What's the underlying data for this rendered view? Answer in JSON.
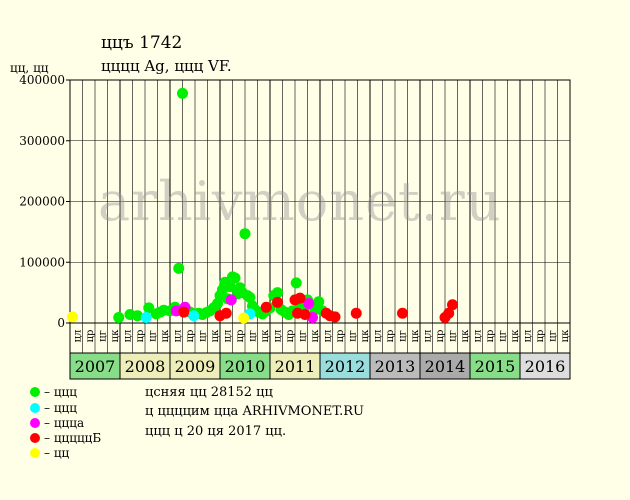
{
  "header": {
    "title": "ццъ 1742",
    "subtitle": "цццц Ag, ццц VF.",
    "y_unit": "цц, цц"
  },
  "watermark": "arhivmonet.ru",
  "colors": {
    "background": "#ffffe8",
    "plot_bg": "#ffffe8",
    "green": "#00ee00",
    "cyan": "#00ffff",
    "magenta": "#ff00ff",
    "red": "#ff0000",
    "yellow": "#ffff00"
  },
  "legend": [
    {
      "label": "– ццц",
      "color": "#00ee00"
    },
    {
      "label": "– ццц",
      "color": "#00ffff"
    },
    {
      "label": "– ццца",
      "color": "#ff00ff"
    },
    {
      "label": "– цццццБ",
      "color": "#ff0000"
    },
    {
      "label": "– цц",
      "color": "#ffff00"
    }
  ],
  "info": {
    "line1": "цcняя цц 28152 цц",
    "line2": "ц ццццим цца ARHIVMONET.RU",
    "line3": "ццц ц 20 ця 2017 цц."
  },
  "chart_data": {
    "type": "scatter",
    "ylim": [
      0,
      400000
    ],
    "yticks": [
      0,
      100000,
      200000,
      300000,
      400000
    ],
    "ytick_labels": [
      "0",
      "100000",
      "200000",
      "300000",
      "400000"
    ],
    "grid": true,
    "years": [
      {
        "label": "2007",
        "color": "#88dd88"
      },
      {
        "label": "2008",
        "color": "#eeeebb"
      },
      {
        "label": "2009",
        "color": "#eeeebb"
      },
      {
        "label": "2010",
        "color": "#88dd88"
      },
      {
        "label": "2011",
        "color": "#eeeebb"
      },
      {
        "label": "2012",
        "color": "#99dddd"
      },
      {
        "label": "2013",
        "color": "#bbbbbb"
      },
      {
        "label": "2014",
        "color": "#aaaaaa"
      },
      {
        "label": "2015",
        "color": "#88dd88"
      },
      {
        "label": "2016",
        "color": "#dddddd"
      }
    ],
    "quarter_labels": [
      "цл",
      "цр",
      "цг",
      "цк"
    ],
    "series": [
      {
        "color": "#00ee00",
        "points": [
          [
            1.95,
            9000
          ],
          [
            2.4,
            14000
          ],
          [
            2.7,
            12000
          ],
          [
            3.15,
            25000
          ],
          [
            3.45,
            15000
          ],
          [
            3.6,
            18000
          ],
          [
            3.75,
            21000
          ],
          [
            4.0,
            20000
          ],
          [
            4.2,
            26000
          ],
          [
            4.35,
            90000
          ],
          [
            4.5,
            378000
          ],
          [
            4.65,
            22000
          ],
          [
            4.8,
            18000
          ],
          [
            5.0,
            15000
          ],
          [
            5.15,
            16000
          ],
          [
            5.3,
            14000
          ],
          [
            5.45,
            17000
          ],
          [
            5.6,
            20000
          ],
          [
            5.75,
            25000
          ],
          [
            5.9,
            32000
          ],
          [
            6.0,
            45000
          ],
          [
            6.1,
            55000
          ],
          [
            6.2,
            67000
          ],
          [
            6.3,
            40000
          ],
          [
            6.4,
            60000
          ],
          [
            6.5,
            76000
          ],
          [
            6.6,
            74000
          ],
          [
            6.7,
            48000
          ],
          [
            6.8,
            58000
          ],
          [
            6.9,
            50000
          ],
          [
            7.0,
            147000
          ],
          [
            7.1,
            45000
          ],
          [
            7.2,
            42000
          ],
          [
            7.3,
            28000
          ],
          [
            7.4,
            22000
          ],
          [
            7.55,
            18000
          ],
          [
            7.7,
            15000
          ],
          [
            7.85,
            20000
          ],
          [
            8.0,
            25000
          ],
          [
            8.15,
            45000
          ],
          [
            8.3,
            50000
          ],
          [
            8.45,
            22000
          ],
          [
            8.6,
            18000
          ],
          [
            8.75,
            14000
          ],
          [
            8.9,
            20000
          ],
          [
            9.05,
            66000
          ],
          [
            9.2,
            25000
          ],
          [
            9.35,
            18000
          ],
          [
            9.5,
            38000
          ],
          [
            9.65,
            30000
          ],
          [
            9.8,
            22000
          ],
          [
            9.95,
            35000
          ],
          [
            10.1,
            20000
          ]
        ]
      },
      {
        "color": "#00ffff",
        "points": [
          [
            3.05,
            9000
          ],
          [
            4.95,
            12000
          ],
          [
            7.2,
            15000
          ]
        ]
      },
      {
        "color": "#ff00ff",
        "points": [
          [
            4.25,
            20000
          ],
          [
            4.6,
            26000
          ],
          [
            6.45,
            38000
          ],
          [
            9.55,
            32000
          ],
          [
            9.7,
            9000
          ]
        ]
      },
      {
        "color": "#ff0000",
        "points": [
          [
            4.55,
            18000
          ],
          [
            6.0,
            12000
          ],
          [
            6.25,
            16000
          ],
          [
            7.85,
            26000
          ],
          [
            8.3,
            34000
          ],
          [
            9.0,
            38000
          ],
          [
            9.1,
            16000
          ],
          [
            9.2,
            41000
          ],
          [
            9.4,
            14000
          ],
          [
            10.25,
            16000
          ],
          [
            10.4,
            12000
          ],
          [
            10.6,
            10000
          ],
          [
            11.45,
            16000
          ],
          [
            13.3,
            16000
          ],
          [
            15.0,
            9000
          ],
          [
            15.15,
            16000
          ],
          [
            15.3,
            30000
          ]
        ]
      },
      {
        "color": "#ffff00",
        "points": [
          [
            0.1,
            10000
          ],
          [
            6.95,
            8000
          ]
        ]
      }
    ]
  }
}
